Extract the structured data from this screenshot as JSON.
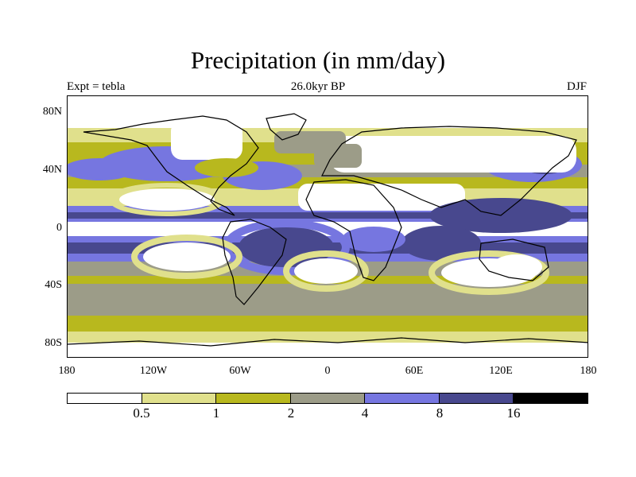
{
  "title": "Precipitation (in mm/day)",
  "subtitle_left": "Expt = tebla",
  "subtitle_center": "26.0kyr BP",
  "subtitle_right": "DJF",
  "lat_labels": [
    "80N",
    "40N",
    "0",
    "40S",
    "80S"
  ],
  "lon_labels": [
    "180",
    "120W",
    "60W",
    "0",
    "60E",
    "120E",
    "180"
  ],
  "legend": {
    "colors": [
      "#ffffff",
      "#e0e08c",
      "#b8b81e",
      "#9c9c88",
      "#7676e0",
      "#48488e",
      "#000000"
    ],
    "labels": [
      "0.5",
      "1",
      "2",
      "4",
      "8",
      "16"
    ]
  },
  "palette": {
    "white": "#ffffff",
    "lightyellow": "#e0e08c",
    "olive": "#b8b81e",
    "gray": "#9c9c88",
    "blue": "#7676e0",
    "navy": "#48488e",
    "black": "#000000"
  }
}
